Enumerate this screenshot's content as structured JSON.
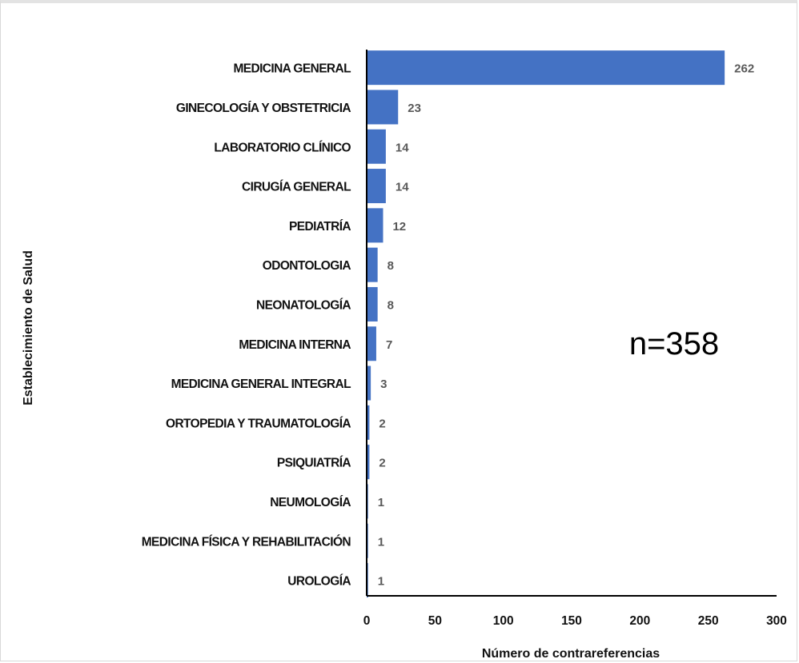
{
  "chart_data": {
    "type": "bar",
    "orientation": "horizontal",
    "categories": [
      "MEDICINA GENERAL",
      "GINECOLOGÍA Y OBSTETRICIA",
      "LABORATORIO CLÍNICO",
      "CIRUGÍA GENERAL",
      "PEDIATRÍA",
      "ODONTOLOGIA",
      "NEONATOLOGÍA",
      "MEDICINA INTERNA",
      "MEDICINA GENERAL INTEGRAL",
      "ORTOPEDIA Y TRAUMATOLOGÍA",
      "PSIQUIATRÍA",
      "NEUMOLOGÍA",
      "MEDICINA FÍSICA Y REHABILITACIÓN",
      "UROLOGÍA"
    ],
    "values": [
      262,
      23,
      14,
      14,
      12,
      8,
      8,
      7,
      3,
      2,
      2,
      1,
      1,
      1
    ],
    "xlabel": "Número de contrareferencias",
    "ylabel": "Establecimiento de Salud",
    "xlim": [
      0,
      300
    ],
    "xticks": [
      0,
      50,
      100,
      150,
      200,
      250,
      300
    ],
    "annotation": "n=358",
    "bar_color": "#4472C4",
    "grid": false,
    "legend": "none"
  }
}
